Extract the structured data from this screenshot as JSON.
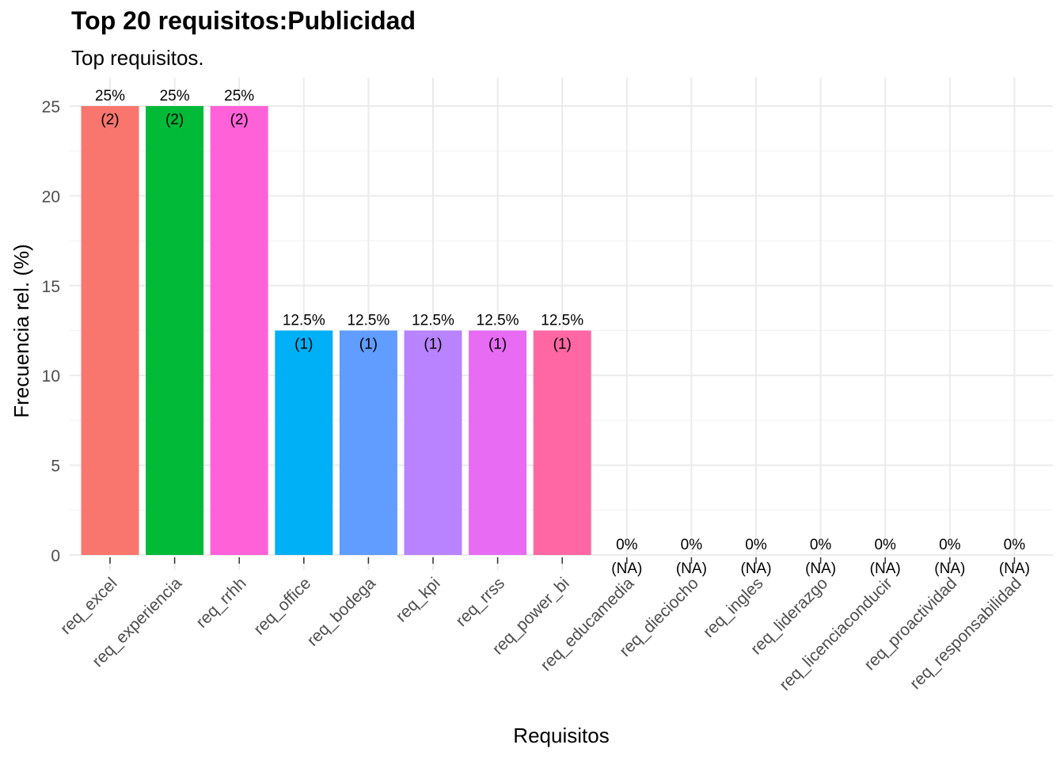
{
  "chart_data": {
    "type": "bar",
    "title": "Top 20 requisitos:Publicidad",
    "subtitle": "Top requisitos.",
    "xlabel": "Requisitos",
    "ylabel": "Frecuencia rel. (%)",
    "ylim": [
      0,
      25
    ],
    "yticks": [
      0,
      5,
      10,
      15,
      20,
      25
    ],
    "grid": true,
    "legend": "none",
    "categories": [
      "req_excel",
      "req_experiencia",
      "req_rrhh",
      "req_office",
      "req_bodega",
      "req_kpi",
      "req_rrss",
      "req_power_bi",
      "req_educamedia",
      "req_dieciocho",
      "req_ingles",
      "req_liderazgo",
      "req_licenciaconducir",
      "req_proactividad",
      "req_responsabilidad"
    ],
    "values": [
      25,
      25,
      25,
      12.5,
      12.5,
      12.5,
      12.5,
      12.5,
      0,
      0,
      0,
      0,
      0,
      0,
      0
    ],
    "pct_labels": [
      "25%",
      "25%",
      "25%",
      "12.5%",
      "12.5%",
      "12.5%",
      "12.5%",
      "12.5%",
      "0%",
      "0%",
      "0%",
      "0%",
      "0%",
      "0%",
      "0%"
    ],
    "count_labels": [
      "(2)",
      "(2)",
      "(2)",
      "(1)",
      "(1)",
      "(1)",
      "(1)",
      "(1)",
      "(NA)",
      "(NA)",
      "(NA)",
      "(NA)",
      "(NA)",
      "(NA)",
      "(NA)"
    ],
    "colors": [
      "#F8766D",
      "#00BA38",
      "#FF61D8",
      "#00B0F6",
      "#619CFF",
      "#B983FF",
      "#E76BF3",
      "#FF67A4",
      "#cccccc",
      "#cccccc",
      "#cccccc",
      "#cccccc",
      "#cccccc",
      "#cccccc",
      "#cccccc"
    ]
  }
}
